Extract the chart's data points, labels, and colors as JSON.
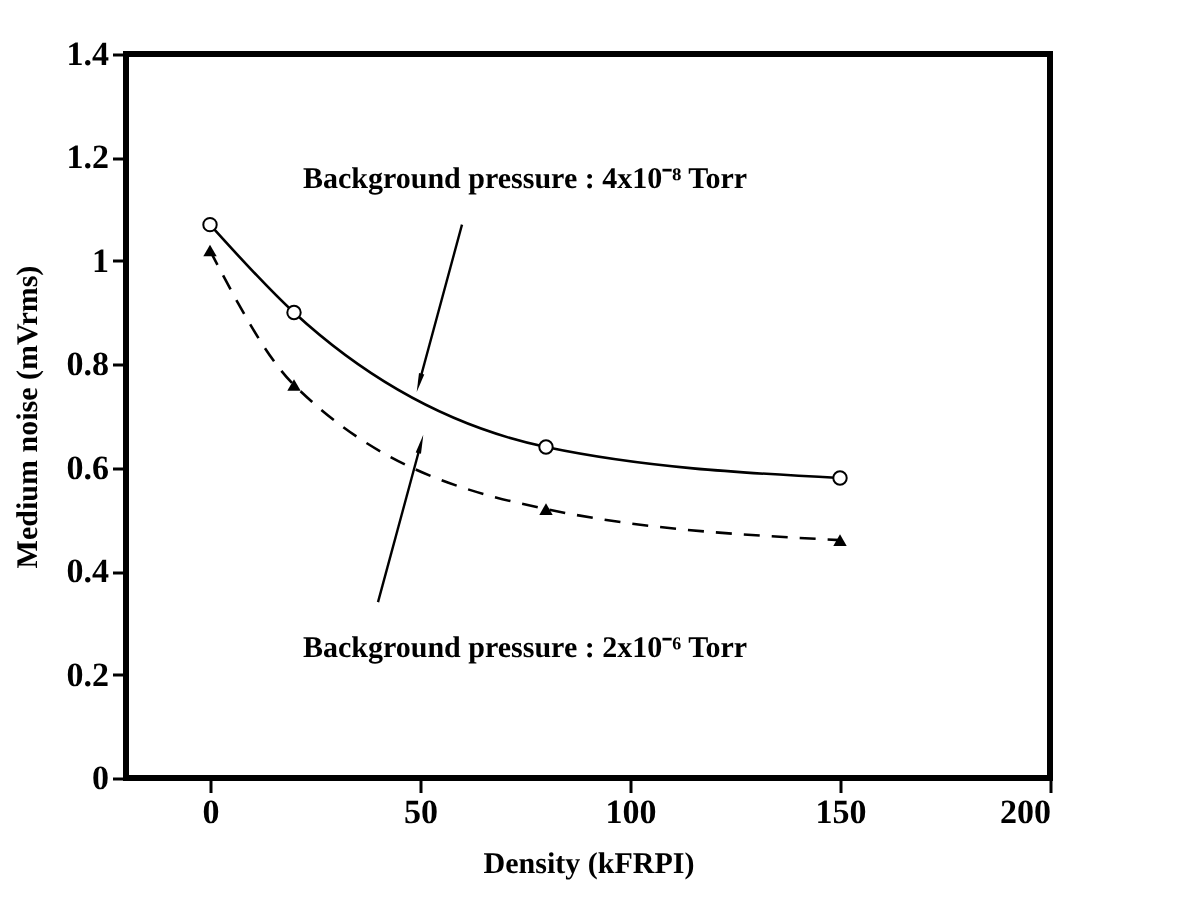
{
  "chart_data": {
    "type": "line",
    "xlabel": "Density  (kFRPI)",
    "ylabel": "Medium noise (mVrms)",
    "x": [
      0,
      20,
      80,
      150
    ],
    "series": [
      {
        "name": "Background pressure : 4x10⁻⁸ Torr",
        "color": "#000000",
        "values": [
          1.07,
          0.9,
          0.64,
          0.58
        ],
        "marker": "circle",
        "line_style": "solid"
      },
      {
        "name": "Background pressure : 2x10⁻⁶ Torr",
        "color": "#000000",
        "values": [
          1.02,
          0.76,
          0.52,
          0.46
        ],
        "marker": "triangle",
        "line_style": "dashed"
      }
    ],
    "xlim": [
      -20,
      200
    ],
    "xticks": [
      0,
      50,
      100,
      150,
      200
    ],
    "ylim": [
      0,
      1.4
    ],
    "yticks": [
      0,
      {
        "value": 0.2,
        "label": "0.2"
      },
      {
        "value": 0.4,
        "label": "0.4"
      },
      {
        "value": 0.6,
        "label": "0.6"
      },
      {
        "value": 0.8,
        "label": "0.8"
      },
      1,
      {
        "value": 1.2,
        "label": "1.2"
      },
      {
        "value": 1.4,
        "label": "1.4"
      }
    ],
    "grid": false
  }
}
